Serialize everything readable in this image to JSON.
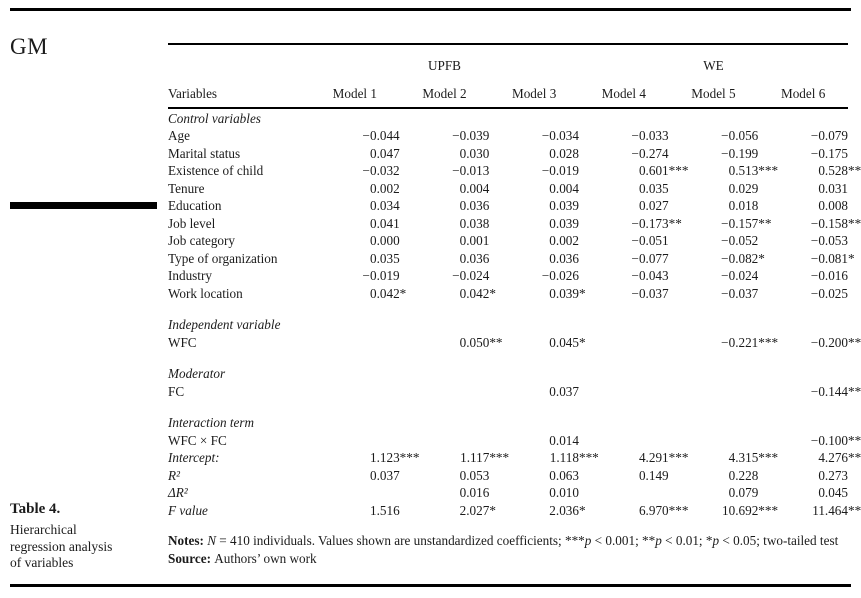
{
  "journal_code": "GM",
  "caption": {
    "label": "Table 4.",
    "lines": [
      "Hierarchical",
      "regression analysis",
      "of variables"
    ]
  },
  "table": {
    "group_header": {
      "left_label": "UPFB",
      "right_label": "WE"
    },
    "columns": [
      "Variables",
      "Model 1",
      "Model 2",
      "Model 3",
      "Model 4",
      "Model 5",
      "Model 6"
    ],
    "sections": [
      {
        "heading": "Control variables",
        "rows": [
          {
            "label": "Age",
            "values": [
              "−0.044",
              "−0.039",
              "−0.034",
              "−0.033",
              "−0.056",
              "−0.079"
            ]
          },
          {
            "label": "Marital status",
            "values": [
              "0.047",
              "0.030",
              "0.028",
              "−0.274",
              "−0.199",
              "−0.175"
            ]
          },
          {
            "label": "Existence of child",
            "values": [
              "−0.032",
              "−0.013",
              "−0.019",
              "0.601***",
              "0.513***",
              "0.528***"
            ]
          },
          {
            "label": "Tenure",
            "values": [
              "0.002",
              "0.004",
              "0.004",
              "0.035",
              "0.029",
              "0.031"
            ]
          },
          {
            "label": "Education",
            "values": [
              "0.034",
              "0.036",
              "0.039",
              "0.027",
              "0.018",
              "0.008"
            ]
          },
          {
            "label": "Job level",
            "values": [
              "0.041",
              "0.038",
              "0.039",
              "−0.173**",
              "−0.157**",
              "−0.158**"
            ]
          },
          {
            "label": "Job category",
            "values": [
              "0.000",
              "0.001",
              "0.002",
              "−0.051",
              "−0.052",
              "−0.053"
            ]
          },
          {
            "label": "Type of organization",
            "values": [
              "0.035",
              "0.036",
              "0.036",
              "−0.077",
              "−0.082*",
              "−0.081*"
            ]
          },
          {
            "label": "Industry",
            "values": [
              "−0.019",
              "−0.024",
              "−0.026",
              "−0.043",
              "−0.024",
              "−0.016"
            ]
          },
          {
            "label": "Work location",
            "values": [
              "0.042*",
              "0.042*",
              "0.039*",
              "−0.037",
              "−0.037",
              "−0.025"
            ]
          }
        ]
      },
      {
        "heading": "Independent variable",
        "rows": [
          {
            "label": "WFC",
            "values": [
              "",
              "0.050**",
              "0.045*",
              "",
              "−0.221***",
              "−0.200***"
            ]
          }
        ]
      },
      {
        "heading": "Moderator",
        "rows": [
          {
            "label": "FC",
            "values": [
              "",
              "",
              "0.037",
              "",
              "",
              "−0.144***"
            ]
          }
        ]
      },
      {
        "heading": "Interaction term",
        "rows": [
          {
            "label": "WFC × FC",
            "values": [
              "",
              "",
              "0.014",
              "",
              "",
              "−0.100**"
            ]
          },
          {
            "label": "Intercept:",
            "italic": true,
            "values": [
              "1.123***",
              "1.117***",
              "1.118***",
              "4.291***",
              "4.315***",
              "4.276***"
            ]
          },
          {
            "label": "R²",
            "italic": true,
            "values": [
              "0.037",
              "0.053",
              "0.063",
              "0.149",
              "0.228",
              "0.273"
            ]
          },
          {
            "label": "ΔR²",
            "italic": true,
            "values": [
              "",
              "0.016",
              "0.010",
              "",
              "0.079",
              "0.045"
            ]
          },
          {
            "label": "F value",
            "italic": true,
            "values": [
              "1.516",
              "2.027*",
              "2.036*",
              "6.970***",
              "10.692***",
              "11.464***"
            ]
          }
        ]
      }
    ]
  },
  "notes": {
    "segments": [
      {
        "t": "Notes: ",
        "b": true
      },
      {
        "t": "N",
        "i": true
      },
      {
        "t": " = 410 individuals. Values shown are unstandardized coefficients; ***"
      },
      {
        "t": "p",
        "i": true
      },
      {
        "t": " < 0.001; **"
      },
      {
        "t": "p",
        "i": true
      },
      {
        "t": " < 0.01; *"
      },
      {
        "t": "p",
        "i": true
      },
      {
        "t": " < 0.05; two-tailed test"
      }
    ],
    "source_segments": [
      {
        "t": "Source: ",
        "b": true
      },
      {
        "t": "Authors’ own work"
      }
    ]
  }
}
